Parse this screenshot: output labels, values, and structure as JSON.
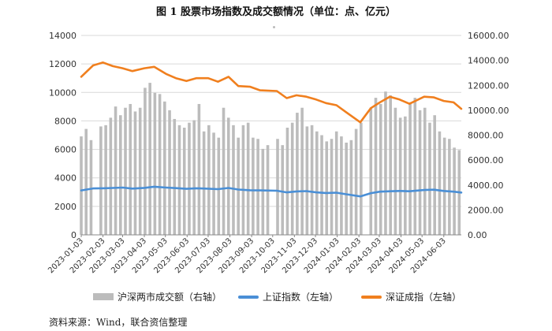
{
  "title": "图 1   股票市场指数及成交额情况（单位：点、亿元）",
  "source": "资料来源：Wind，联合资信整理",
  "legend": {
    "bars": "沪深两市成交额（右轴）",
    "sh": "上证指数（左轴）",
    "sz": "深证成指（左轴）"
  },
  "colors": {
    "bars": "#bcbcbc",
    "sh": "#4a8fd6",
    "sz": "#f07f1e",
    "axis": "#888888",
    "grid": "#d9d9d9"
  },
  "chart_data": {
    "type": "bar+line",
    "left_axis": {
      "min": 0,
      "max": 14000,
      "ticks": [
        "0",
        "2000",
        "4000",
        "6000",
        "8000",
        "10000",
        "12000",
        "14000"
      ]
    },
    "right_axis": {
      "min": 0,
      "max": 16000,
      "ticks": [
        "0.00",
        "2000.00",
        "4000.00",
        "6000.00",
        "8000.00",
        "10000.00",
        "12000.00",
        "14000.00",
        "16000.00"
      ]
    },
    "x_ticks": [
      "2023-01-03",
      "2023-02-03",
      "2023-03-03",
      "2023-04-03",
      "2023-05-03",
      "2023-06-03",
      "2023-07-03",
      "2023-08-03",
      "2023-09-03",
      "2023-10-03",
      "2023-11-03",
      "2023-12-03",
      "2024-01-03",
      "2024-02-03",
      "2024-03-03",
      "2024-04-03",
      "2024-05-03",
      "2024-06-03"
    ],
    "x_range": [
      "2023-01-03",
      "2024-06-28"
    ],
    "grid": true,
    "legend_position": "bottom",
    "series": [
      {
        "name": "沪深两市成交额（右轴）",
        "type": "bar",
        "axis": "right",
        "x": [
          "2023-01-03",
          "2023-01-10",
          "2023-01-17",
          "2023-01-31",
          "2023-02-07",
          "2023-02-14",
          "2023-02-21",
          "2023-02-28",
          "2023-03-07",
          "2023-03-14",
          "2023-03-21",
          "2023-03-28",
          "2023-04-04",
          "2023-04-11",
          "2023-04-18",
          "2023-04-25",
          "2023-05-02",
          "2023-05-09",
          "2023-05-16",
          "2023-05-23",
          "2023-05-30",
          "2023-06-06",
          "2023-06-13",
          "2023-06-20",
          "2023-06-27",
          "2023-07-04",
          "2023-07-11",
          "2023-07-18",
          "2023-07-25",
          "2023-08-01",
          "2023-08-08",
          "2023-08-15",
          "2023-08-22",
          "2023-08-29",
          "2023-09-05",
          "2023-09-12",
          "2023-09-19",
          "2023-09-26",
          "2023-10-10",
          "2023-10-17",
          "2023-10-24",
          "2023-10-31",
          "2023-11-07",
          "2023-11-14",
          "2023-11-21",
          "2023-11-28",
          "2023-12-05",
          "2023-12-12",
          "2023-12-19",
          "2023-12-26",
          "2024-01-02",
          "2024-01-09",
          "2024-01-16",
          "2024-01-23",
          "2024-01-30",
          "2024-02-06",
          "2024-02-20",
          "2024-02-27",
          "2024-03-05",
          "2024-03-12",
          "2024-03-19",
          "2024-03-26",
          "2024-04-02",
          "2024-04-09",
          "2024-04-16",
          "2024-04-23",
          "2024-04-30",
          "2024-05-07",
          "2024-05-14",
          "2024-05-21",
          "2024-05-28",
          "2024-06-04",
          "2024-06-11",
          "2024-06-18",
          "2024-06-25"
        ],
        "values": [
          7900,
          8500,
          7600,
          8700,
          8800,
          9400,
          10300,
          9600,
          10200,
          10500,
          9900,
          10200,
          11800,
          12200,
          11400,
          11300,
          10700,
          10000,
          9300,
          8800,
          8600,
          9000,
          9200,
          10500,
          8300,
          8800,
          8200,
          7800,
          10200,
          9400,
          8800,
          7800,
          8800,
          9000,
          7800,
          7700,
          6900,
          7200,
          7700,
          7200,
          8600,
          9000,
          9800,
          10200,
          8700,
          8800,
          8300,
          8000,
          7500,
          7700,
          8300,
          7900,
          7400,
          7600,
          8500,
          9000,
          10200,
          11000,
          10500,
          11500,
          11200,
          10200,
          9400,
          9500,
          10500,
          11000,
          10000,
          10200,
          9000,
          9600,
          8300,
          7800,
          7700,
          7000,
          6800
        ]
      },
      {
        "name": "上证指数（左轴）",
        "type": "line",
        "axis": "left",
        "x": [
          "2023-01-03",
          "2023-01-20",
          "2023-02-03",
          "2023-02-17",
          "2023-03-03",
          "2023-03-17",
          "2023-04-03",
          "2023-04-17",
          "2023-05-04",
          "2023-05-18",
          "2023-06-02",
          "2023-06-16",
          "2023-07-03",
          "2023-07-17",
          "2023-08-01",
          "2023-08-15",
          "2023-09-01",
          "2023-09-15",
          "2023-10-09",
          "2023-10-23",
          "2023-11-06",
          "2023-11-20",
          "2023-12-04",
          "2023-12-18",
          "2024-01-02",
          "2024-01-16",
          "2024-02-05",
          "2024-02-20",
          "2024-03-04",
          "2024-03-18",
          "2024-04-01",
          "2024-04-15",
          "2024-05-06",
          "2024-05-20",
          "2024-06-03",
          "2024-06-17",
          "2024-06-28"
        ],
        "values": [
          3120,
          3260,
          3270,
          3290,
          3320,
          3250,
          3300,
          3380,
          3320,
          3280,
          3230,
          3270,
          3240,
          3210,
          3290,
          3180,
          3130,
          3120,
          3100,
          2980,
          3050,
          3070,
          2980,
          2940,
          2960,
          2850,
          2700,
          2930,
          3030,
          3060,
          3080,
          3060,
          3150,
          3170,
          3080,
          3030,
          2970
        ]
      },
      {
        "name": "深证成指（左轴）",
        "type": "line",
        "axis": "left",
        "x": [
          "2023-01-03",
          "2023-01-20",
          "2023-02-03",
          "2023-02-17",
          "2023-03-03",
          "2023-03-17",
          "2023-04-03",
          "2023-04-17",
          "2023-05-04",
          "2023-05-18",
          "2023-06-02",
          "2023-06-16",
          "2023-07-03",
          "2023-07-17",
          "2023-08-01",
          "2023-08-15",
          "2023-09-01",
          "2023-09-15",
          "2023-10-09",
          "2023-10-23",
          "2023-11-06",
          "2023-11-20",
          "2023-12-04",
          "2023-12-18",
          "2024-01-02",
          "2024-01-16",
          "2024-02-05",
          "2024-02-20",
          "2024-03-04",
          "2024-03-18",
          "2024-04-01",
          "2024-04-15",
          "2024-05-06",
          "2024-05-20",
          "2024-06-03",
          "2024-06-17",
          "2024-06-28"
        ],
        "values": [
          11100,
          11900,
          12100,
          11850,
          11700,
          11500,
          11700,
          11800,
          11300,
          11000,
          10800,
          11000,
          11000,
          10750,
          11100,
          10450,
          10400,
          10150,
          10100,
          9600,
          9800,
          9700,
          9500,
          9250,
          9100,
          8600,
          7900,
          8900,
          9300,
          9700,
          9500,
          9200,
          9700,
          9650,
          9400,
          9300,
          8850
        ]
      }
    ]
  }
}
